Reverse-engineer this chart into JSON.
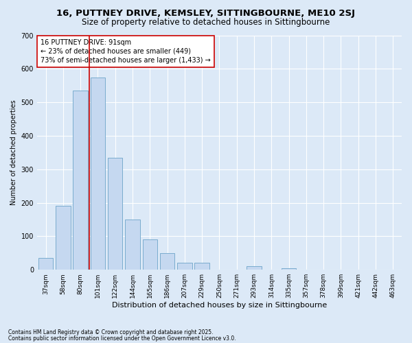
{
  "title1": "16, PUTTNEY DRIVE, KEMSLEY, SITTINGBOURNE, ME10 2SJ",
  "title2": "Size of property relative to detached houses in Sittingbourne",
  "xlabel": "Distribution of detached houses by size in Sittingbourne",
  "ylabel": "Number of detached properties",
  "categories": [
    "37sqm",
    "58sqm",
    "80sqm",
    "101sqm",
    "122sqm",
    "144sqm",
    "165sqm",
    "186sqm",
    "207sqm",
    "229sqm",
    "250sqm",
    "271sqm",
    "293sqm",
    "314sqm",
    "335sqm",
    "357sqm",
    "378sqm",
    "399sqm",
    "421sqm",
    "442sqm",
    "463sqm"
  ],
  "values": [
    35,
    190,
    535,
    575,
    335,
    150,
    90,
    50,
    20,
    20,
    0,
    0,
    10,
    0,
    5,
    0,
    0,
    0,
    0,
    0,
    0
  ],
  "bar_color": "#c5d8f0",
  "bar_edge_color": "#7aacce",
  "vline_color": "#cc0000",
  "vline_pos": 2.5,
  "ylim": [
    0,
    700
  ],
  "yticks": [
    0,
    100,
    200,
    300,
    400,
    500,
    600,
    700
  ],
  "annotation_text": "16 PUTTNEY DRIVE: 91sqm\n← 23% of detached houses are smaller (449)\n73% of semi-detached houses are larger (1,433) →",
  "annotation_box_color": "#ffffff",
  "annotation_box_edge": "#cc0000",
  "footnote1": "Contains HM Land Registry data © Crown copyright and database right 2025.",
  "footnote2": "Contains public sector information licensed under the Open Government Licence v3.0.",
  "bg_color": "#dce9f7",
  "plot_bg_color": "#dce9f7",
  "grid_color": "#ffffff",
  "title1_fontsize": 9.5,
  "title2_fontsize": 8.5,
  "xlabel_fontsize": 8,
  "ylabel_fontsize": 7,
  "xtick_fontsize": 6.5,
  "ytick_fontsize": 7,
  "annot_fontsize": 7,
  "footnote_fontsize": 5.5
}
